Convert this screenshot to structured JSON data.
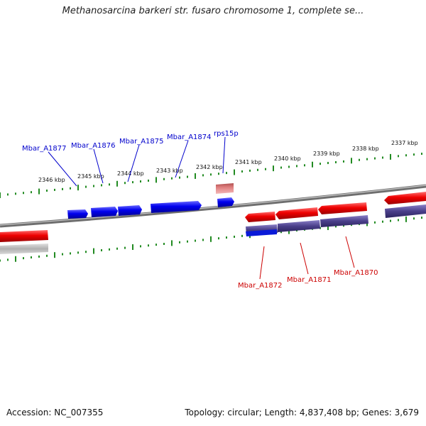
{
  "title": "Methanosarcina barkeri str. fusaro chromosome 1, complete se...",
  "accession": "Accession: NC_007355",
  "summary": "Topology: circular; Length: 4,837,408 bp; Genes: 3,679",
  "colors": {
    "forward": "#0000ee",
    "reverse": "#ee0000",
    "forward_label": "#0000cc",
    "reverse_label": "#cc0000",
    "backbone": "#777777",
    "ticks": "#228b22",
    "rna": "#e08080",
    "pseudo": "#4a3f8a"
  },
  "kbp_labels": [
    "2346 kbp",
    "2345 kbp",
    "2344 kbp",
    "2343 kbp",
    "2342 kbp",
    "2341 kbp",
    "2340 kbp",
    "2339 kbp",
    "2338 kbp",
    "2337 kbp"
  ],
  "forward_labels": [
    "Mbar_A1877",
    "Mbar_A1876",
    "Mbar_A1875",
    "Mbar_A1874",
    "rps15p"
  ],
  "reverse_labels": [
    "Mbar_A1872",
    "Mbar_A1871",
    "Mbar_A1870"
  ]
}
